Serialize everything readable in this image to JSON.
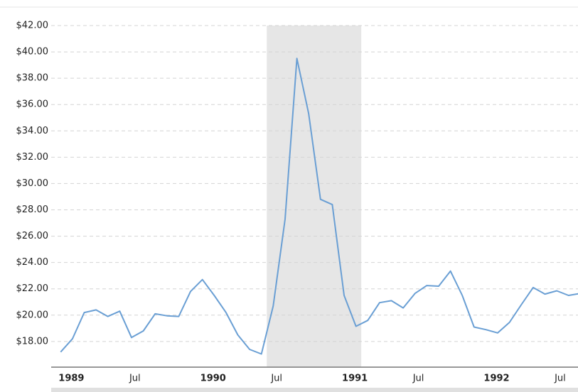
{
  "chart_data": {
    "type": "line",
    "categories": [
      "1989",
      null,
      null,
      null,
      null,
      null,
      "Jul",
      null,
      null,
      null,
      null,
      null,
      "1990",
      null,
      null,
      null,
      null,
      null,
      "Jul",
      null,
      null,
      null,
      null,
      null,
      "1991",
      null,
      null,
      null,
      null,
      null,
      "Jul",
      null,
      null,
      null,
      null,
      null,
      "1992",
      null,
      null,
      null,
      null,
      null,
      "Jul",
      null,
      null
    ],
    "values": [
      17.2,
      18.2,
      20.2,
      20.4,
      19.9,
      20.3,
      18.3,
      18.8,
      20.1,
      19.95,
      19.9,
      21.8,
      22.7,
      21.5,
      20.2,
      18.5,
      17.4,
      17.05,
      20.7,
      27.3,
      39.5,
      35.3,
      28.8,
      28.4,
      21.5,
      19.15,
      19.6,
      20.95,
      21.1,
      20.55,
      21.65,
      22.25,
      22.2,
      23.35,
      21.5,
      19.1,
      18.9,
      18.65,
      19.45,
      20.8,
      22.1,
      21.6,
      21.85,
      21.5,
      21.65
    ],
    "color": "#6a9fd4",
    "shaded_range": {
      "start": 17.45,
      "end": 25.45,
      "color": "#e6e6e6"
    },
    "xlim": [
      -0.8,
      43.8
    ],
    "ylim": [
      16.05,
      42
    ],
    "yticks": [
      {
        "value": 18,
        "label": "$18.00"
      },
      {
        "value": 20,
        "label": "$20.00"
      },
      {
        "value": 22,
        "label": "$22.00"
      },
      {
        "value": 24,
        "label": "$24.00"
      },
      {
        "value": 26,
        "label": "$26.00"
      },
      {
        "value": 28,
        "label": "$28.00"
      },
      {
        "value": 30,
        "label": "$30.00"
      },
      {
        "value": 32,
        "label": "$32.00"
      },
      {
        "value": 34,
        "label": "$34.00"
      },
      {
        "value": 36,
        "label": "$36.00"
      },
      {
        "value": 38,
        "label": "$38.00"
      },
      {
        "value": 40,
        "label": "$40.00"
      },
      {
        "value": 42,
        "label": "$42.00"
      }
    ],
    "grid": true
  }
}
